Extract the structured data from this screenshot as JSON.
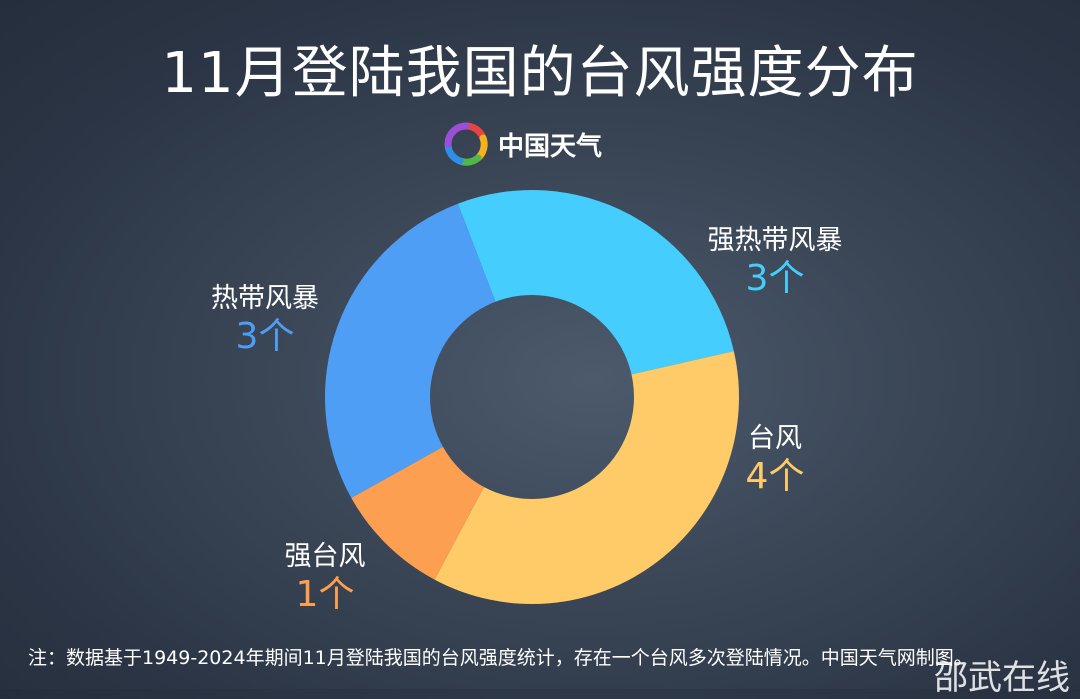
{
  "chart_data": {
    "type": "pie",
    "style": "donut",
    "title": "11月登陆我国的台风强度分布",
    "unit": "个",
    "slices": [
      {
        "label": "强热带风暴",
        "value": 3,
        "color": "#45cdfd"
      },
      {
        "label": "台风",
        "value": 4,
        "color": "#fecb68"
      },
      {
        "label": "强台风",
        "value": 1,
        "color": "#fd9f50"
      },
      {
        "label": "热带风暴",
        "value": 3,
        "color": "#4f9ef5"
      }
    ]
  },
  "brand": "中国天气",
  "note": "注：数据基于1949-2024年期间11月登陆我国的台风强度统计，存在一个台风多次登陆情况。中国天气网制图。",
  "watermark": "邵武在线"
}
